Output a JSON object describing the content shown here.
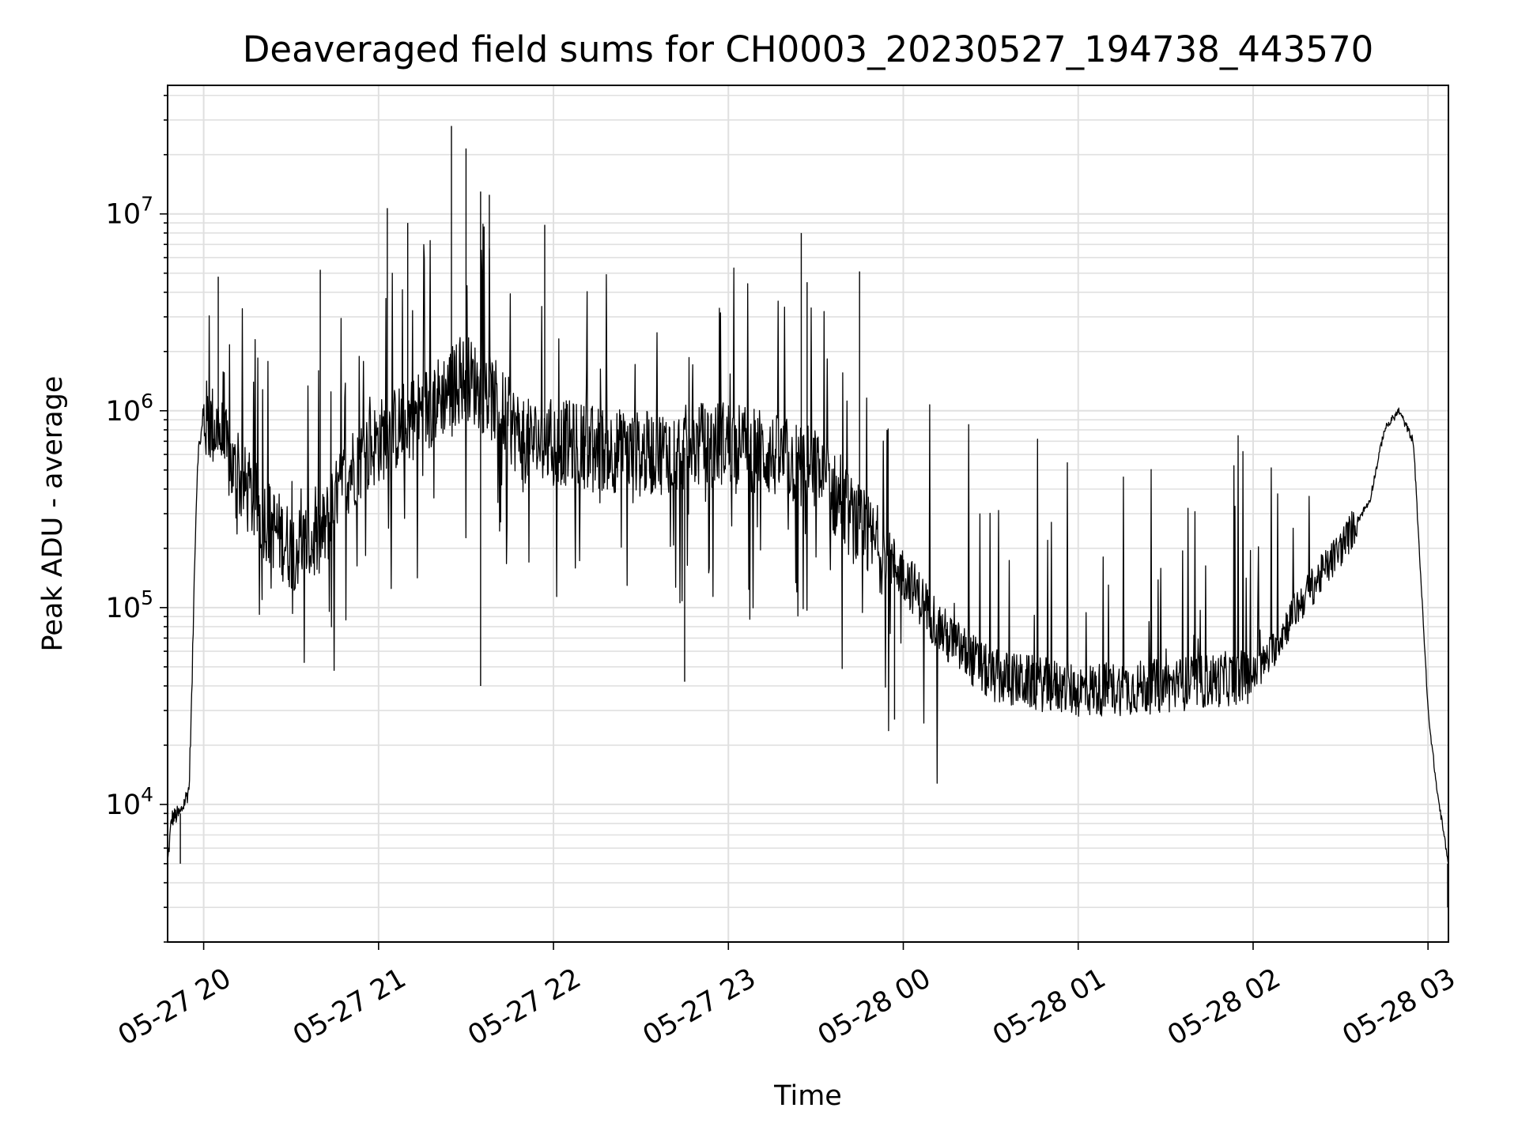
{
  "chart_data": {
    "type": "line",
    "title": "Deaveraged field sums for CH0003_20230527_194738_443570",
    "xlabel": "Time",
    "ylabel": "Peak ADU - average",
    "yscale": "log",
    "ylim": [
      2000,
      45000000
    ],
    "xlim": [
      "2023-05-27 19:47:38",
      "2023-05-28 03:07:00"
    ],
    "grid": true,
    "line_color": "#000000",
    "grid_color": "#e0e0e0",
    "x_ticks": [
      {
        "value": "2023-05-27 20:00",
        "label": "05-27 20"
      },
      {
        "value": "2023-05-27 21:00",
        "label": "05-27 21"
      },
      {
        "value": "2023-05-27 22:00",
        "label": "05-27 22"
      },
      {
        "value": "2023-05-27 23:00",
        "label": "05-27 23"
      },
      {
        "value": "2023-05-28 00:00",
        "label": "05-28 00"
      },
      {
        "value": "2023-05-28 01:00",
        "label": "05-28 01"
      },
      {
        "value": "2023-05-28 02:00",
        "label": "05-28 02"
      },
      {
        "value": "2023-05-28 03:00",
        "label": "05-28 03"
      }
    ],
    "y_ticks": [
      {
        "value": 10000,
        "base": "10",
        "exp": "4"
      },
      {
        "value": 100000,
        "base": "10",
        "exp": "5"
      },
      {
        "value": 1000000,
        "base": "10",
        "exp": "6"
      },
      {
        "value": 10000000,
        "base": "10",
        "exp": "7"
      }
    ],
    "series": [
      {
        "baseline": [
          [
            "2023-05-27 19:47:38",
            5000
          ],
          [
            "2023-05-27 19:49",
            8500
          ],
          [
            "2023-05-27 19:52",
            9000
          ],
          [
            "2023-05-27 19:55",
            12000
          ],
          [
            "2023-05-27 19:56",
            40000
          ],
          [
            "2023-05-27 19:57",
            200000
          ],
          [
            "2023-05-27 19:58",
            600000
          ],
          [
            "2023-05-27 20:00",
            900000
          ],
          [
            "2023-05-27 20:05",
            800000
          ],
          [
            "2023-05-27 20:10",
            500000
          ],
          [
            "2023-05-27 20:20",
            300000
          ],
          [
            "2023-05-27 20:30",
            200000
          ],
          [
            "2023-05-27 20:40",
            220000
          ],
          [
            "2023-05-27 20:50",
            500000
          ],
          [
            "2023-05-27 21:00",
            700000
          ],
          [
            "2023-05-27 21:15",
            1000000
          ],
          [
            "2023-05-27 21:30",
            1500000
          ],
          [
            "2023-05-27 21:40",
            1100000
          ],
          [
            "2023-05-27 21:50",
            700000
          ],
          [
            "2023-05-27 22:00",
            700000
          ],
          [
            "2023-05-27 22:30",
            600000
          ],
          [
            "2023-05-27 23:00",
            700000
          ],
          [
            "2023-05-27 23:30",
            500000
          ],
          [
            "2023-05-27 23:45",
            250000
          ],
          [
            "2023-05-28 00:00",
            150000
          ],
          [
            "2023-05-28 00:15",
            70000
          ],
          [
            "2023-05-28 00:30",
            45000
          ],
          [
            "2023-05-28 01:00",
            38000
          ],
          [
            "2023-05-28 01:30",
            40000
          ],
          [
            "2023-05-28 02:00",
            45000
          ],
          [
            "2023-05-28 02:05",
            55000
          ],
          [
            "2023-05-28 02:15",
            100000
          ],
          [
            "2023-05-28 02:30",
            200000
          ],
          [
            "2023-05-28 02:40",
            350000
          ],
          [
            "2023-05-28 02:45",
            800000
          ],
          [
            "2023-05-28 02:50",
            1000000
          ],
          [
            "2023-05-28 02:55",
            700000
          ],
          [
            "2023-05-28 03:00",
            30000
          ],
          [
            "2023-05-28 03:03",
            12000
          ],
          [
            "2023-05-28 03:07",
            5000
          ]
        ],
        "spikes": [
          [
            "2023-05-27 20:05",
            4800000
          ],
          [
            "2023-05-27 20:40",
            5200000
          ],
          [
            "2023-05-27 21:03",
            10700000
          ],
          [
            "2023-05-27 21:10",
            9000000
          ],
          [
            "2023-05-27 21:25",
            28000000
          ],
          [
            "2023-05-27 21:30",
            21500000
          ],
          [
            "2023-05-27 21:35",
            13000000
          ],
          [
            "2023-05-27 21:38",
            12500000
          ],
          [
            "2023-05-27 21:57",
            8800000
          ],
          [
            "2023-05-27 23:25",
            8000000
          ],
          [
            "2023-05-27 23:27",
            4500000
          ],
          [
            "2023-05-27 23:45",
            5100000
          ]
        ],
        "dips": [
          [
            "2023-05-27 19:52",
            5000
          ],
          [
            "2023-05-27 21:35",
            40000
          ],
          [
            "2023-05-27 22:45",
            42000
          ],
          [
            "2023-05-27 23:57",
            27000
          ],
          [
            "2023-05-28 03:07",
            3000
          ]
        ]
      }
    ]
  }
}
